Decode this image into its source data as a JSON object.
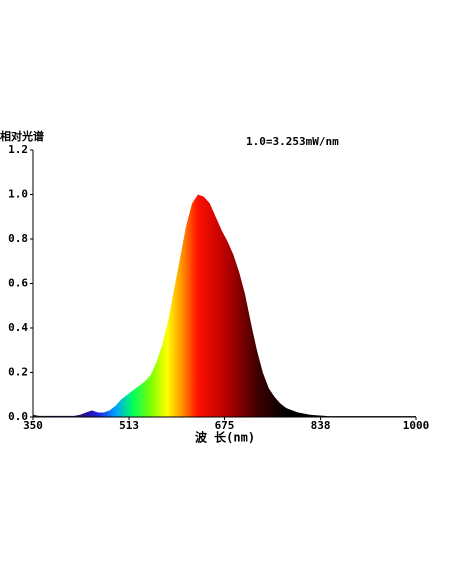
{
  "chart_data": {
    "type": "area",
    "title": "相对光谱",
    "annotation": "1.0=3.253mW/nm",
    "x_label": "波 长(nm)",
    "x": [
      350,
      360,
      370,
      380,
      390,
      400,
      410,
      420,
      430,
      440,
      450,
      460,
      470,
      480,
      490,
      500,
      510,
      520,
      530,
      540,
      550,
      560,
      570,
      580,
      590,
      600,
      610,
      620,
      630,
      640,
      650,
      660,
      670,
      680,
      690,
      700,
      710,
      720,
      730,
      740,
      750,
      760,
      770,
      780,
      790,
      800,
      810,
      820,
      830,
      840,
      850,
      860,
      870,
      880,
      890,
      900,
      910,
      920,
      930,
      940,
      950,
      960,
      970,
      980,
      990,
      1000
    ],
    "values": [
      0.01,
      0.005,
      0.005,
      0.005,
      0.005,
      0.005,
      0.005,
      0.005,
      0.01,
      0.02,
      0.03,
      0.02,
      0.02,
      0.03,
      0.05,
      0.08,
      0.1,
      0.12,
      0.14,
      0.16,
      0.19,
      0.25,
      0.33,
      0.44,
      0.58,
      0.72,
      0.86,
      0.96,
      1.0,
      0.99,
      0.96,
      0.9,
      0.84,
      0.79,
      0.73,
      0.65,
      0.55,
      0.42,
      0.3,
      0.2,
      0.13,
      0.09,
      0.06,
      0.04,
      0.03,
      0.02,
      0.015,
      0.01,
      0.008,
      0.006,
      0.004,
      0.004,
      0.004,
      0.004,
      0.004,
      0.004,
      0.004,
      0.004,
      0.004,
      0.004,
      0.004,
      0.004,
      0.004,
      0.004,
      0.004,
      0.004
    ],
    "xlim": [
      350,
      1000
    ],
    "xticks": [
      350,
      513,
      675,
      838,
      1000
    ],
    "ylim": [
      0,
      1.2
    ],
    "yticks": [
      {
        "value": 0,
        "label": "0.0"
      },
      0.2,
      0.4,
      0.6,
      0.8,
      {
        "value": 1,
        "label": "1.0"
      },
      1.2
    ]
  }
}
